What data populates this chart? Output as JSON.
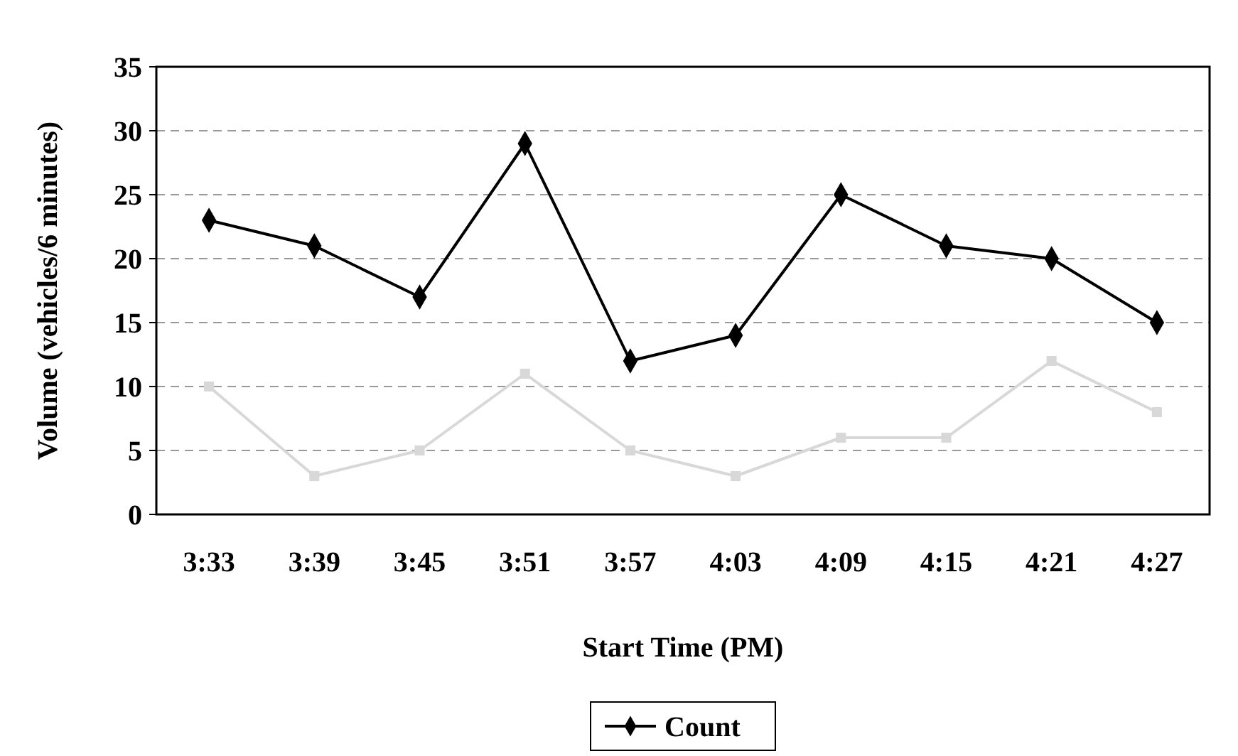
{
  "chart_data": {
    "type": "line",
    "xlabel": "Start Time (PM)",
    "ylabel": "Volume (vehicles/6 minutes)",
    "categories": [
      "3:33",
      "3:39",
      "3:45",
      "3:51",
      "3:57",
      "4:03",
      "4:09",
      "4:15",
      "4:21",
      "4:27"
    ],
    "series": [
      {
        "name": "Count",
        "color": "#000000",
        "marker": "diamond",
        "values": [
          23,
          21,
          17,
          29,
          12,
          14,
          25,
          21,
          20,
          15
        ]
      },
      {
        "color": "#d8d8d8",
        "marker": "square",
        "values": [
          10,
          3,
          5,
          11,
          5,
          3,
          6,
          6,
          12,
          8
        ]
      }
    ],
    "ylim": [
      0,
      35
    ],
    "yticks": [
      0,
      5,
      10,
      15,
      20,
      25,
      30,
      35
    ],
    "grid": "y",
    "legend": "bottom",
    "line_style": "solid"
  }
}
